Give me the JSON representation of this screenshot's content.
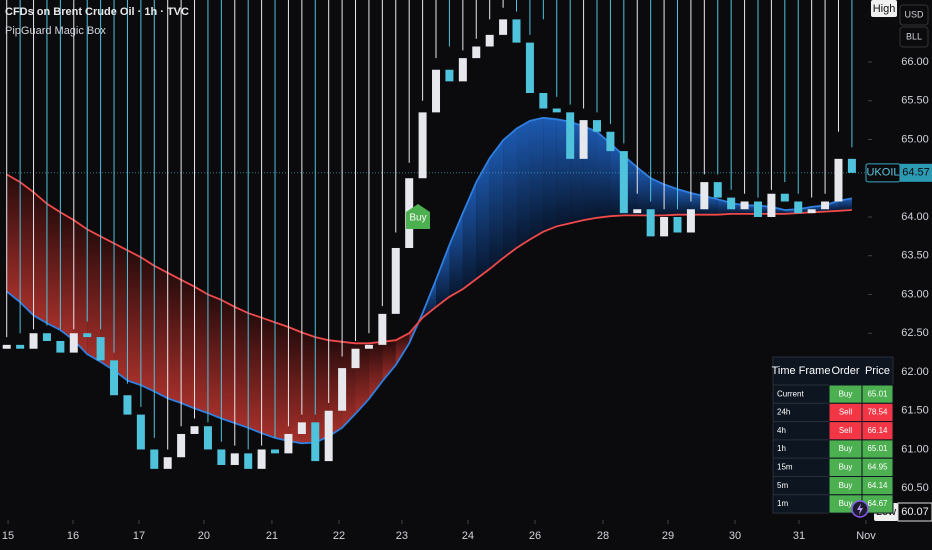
{
  "chart_data": {
    "type": "candlestick",
    "title": "CFDs on Brent Crude Oil · 1h · TVC",
    "subtitle": "PipGuard Magic Box",
    "open": [
      62.3,
      62.35,
      62.3,
      62.5,
      62.4,
      62.25,
      62.5,
      62.45,
      62.15,
      61.7,
      61.45,
      61.0,
      60.75,
      60.9,
      61.2,
      61.3,
      61.0,
      60.8,
      60.95,
      60.75,
      61.0,
      60.95,
      61.2,
      61.35,
      60.85,
      61.5,
      62.05,
      62.3,
      62.35,
      62.75,
      63.6,
      64.5,
      65.35,
      65.9,
      65.75,
      66.05,
      66.2,
      66.35,
      66.55,
      66.25,
      65.6,
      65.4,
      65.35,
      64.75,
      65.25,
      65.1,
      64.85,
      64.05,
      64.1,
      63.75,
      64.0,
      63.8,
      64.1,
      64.45,
      64.25,
      64.1,
      64.2,
      64.0,
      64.3,
      64.2,
      64.05,
      64.1,
      64.2,
      64.75
    ],
    "high": [
      62.45,
      62.5,
      62.55,
      62.6,
      62.55,
      62.55,
      62.65,
      62.55,
      62.25,
      61.85,
      61.55,
      61.15,
      61.0,
      61.3,
      61.4,
      61.35,
      61.1,
      61.05,
      61.0,
      61.05,
      61.15,
      61.3,
      61.45,
      61.45,
      61.6,
      62.2,
      62.4,
      62.5,
      62.85,
      63.8,
      64.7,
      65.5,
      66.05,
      66.2,
      66.15,
      66.3,
      66.55,
      66.7,
      66.65,
      66.35,
      66.55,
      65.55,
      65.45,
      65.4,
      65.35,
      65.2,
      64.95,
      64.3,
      64.2,
      64.1,
      64.1,
      64.2,
      64.55,
      64.55,
      64.35,
      64.3,
      64.25,
      64.35,
      64.45,
      64.3,
      64.25,
      64.3,
      65.1,
      64.9
    ],
    "low": 60.07,
    "close": [
      62.35,
      62.3,
      62.5,
      62.4,
      62.25,
      62.5,
      62.45,
      62.15,
      61.7,
      61.45,
      61.0,
      60.75,
      60.9,
      61.2,
      61.3,
      61.0,
      60.8,
      60.95,
      60.75,
      61.0,
      60.95,
      61.2,
      61.35,
      60.85,
      61.5,
      62.05,
      62.3,
      62.35,
      62.75,
      63.6,
      64.5,
      65.35,
      65.9,
      65.75,
      66.05,
      66.2,
      66.35,
      66.55,
      66.25,
      65.6,
      65.4,
      65.35,
      64.75,
      65.25,
      65.1,
      64.85,
      64.05,
      64.1,
      63.75,
      64.0,
      63.8,
      64.1,
      64.45,
      64.25,
      64.1,
      64.2,
      64.0,
      64.3,
      64.2,
      64.05,
      64.1,
      64.2,
      64.75,
      64.57
    ],
    "up_color": "#e6e8ee",
    "down_color": "#4fc3dc",
    "moving_averages": [
      {
        "color": "#2f7fe0",
        "values": [
          63.04,
          62.9,
          62.73,
          62.63,
          62.54,
          62.41,
          62.23,
          62.13,
          62.02,
          61.89,
          61.83,
          61.75,
          61.66,
          61.6,
          61.53,
          61.47,
          61.4,
          61.34,
          61.28,
          61.21,
          61.15,
          61.11,
          61.08,
          61.09,
          61.17,
          61.28,
          61.46,
          61.65,
          61.88,
          62.09,
          62.37,
          62.76,
          63.19,
          63.64,
          64.05,
          64.45,
          64.76,
          64.99,
          65.14,
          65.24,
          65.28,
          65.26,
          65.23,
          65.17,
          65.1,
          64.95,
          64.79,
          64.64,
          64.5,
          64.42,
          64.36,
          64.31,
          64.27,
          64.23,
          64.18,
          64.15,
          64.15,
          64.13,
          64.09,
          64.1,
          64.13,
          64.15,
          64.21,
          64.24
        ]
      },
      {
        "color": "#f04a4a",
        "values": [
          64.55,
          64.45,
          64.32,
          64.17,
          64.06,
          63.96,
          63.84,
          63.75,
          63.66,
          63.57,
          63.48,
          63.37,
          63.28,
          63.19,
          63.1,
          63.0,
          62.93,
          62.84,
          62.76,
          62.7,
          62.64,
          62.58,
          62.51,
          62.45,
          62.41,
          62.39,
          62.37,
          62.37,
          62.39,
          62.41,
          62.5,
          62.7,
          62.84,
          62.97,
          63.07,
          63.2,
          63.33,
          63.47,
          63.6,
          63.71,
          63.81,
          63.88,
          63.92,
          63.96,
          63.99,
          64.01,
          64.02,
          64.02,
          64.02,
          64.02,
          64.03,
          64.03,
          64.03,
          64.03,
          64.04,
          64.04,
          64.04,
          64.04,
          64.04,
          64.05,
          64.06,
          64.07,
          64.08,
          64.09
        ]
      }
    ],
    "band_colors": {
      "bull": [
        "#1f63c4",
        "#07162e"
      ],
      "bear": [
        "#2a0b0b",
        "#b8342e"
      ]
    },
    "ylim": [
      60.09,
      66.8
    ],
    "yticks": [
      {
        "value": 60.5,
        "label": "60.50"
      },
      {
        "value": 61,
        "label": "61.00"
      },
      {
        "value": 61.5,
        "label": "61.50"
      },
      {
        "value": 62,
        "label": "62.00"
      },
      {
        "value": 62.5,
        "label": "62.50"
      },
      {
        "value": 63,
        "label": "63.00"
      },
      {
        "value": 63.5,
        "label": "63.50"
      },
      {
        "value": 64,
        "label": "64.00"
      },
      {
        "value": 65,
        "label": "65.00"
      },
      {
        "value": 65.5,
        "label": "65.50"
      },
      {
        "value": 66,
        "label": "66.00"
      }
    ],
    "xlim": [
      -0.5,
      64.2
    ],
    "xticks": [
      {
        "value": 0.1,
        "label": "15"
      },
      {
        "value": 4.94,
        "label": "16"
      },
      {
        "value": 9.86,
        "label": "17"
      },
      {
        "value": 14.7,
        "label": "20"
      },
      {
        "value": 19.77,
        "label": "21"
      },
      {
        "value": 24.77,
        "label": "22"
      },
      {
        "value": 29.46,
        "label": "23"
      },
      {
        "value": 34.38,
        "label": "24"
      },
      {
        "value": 39.38,
        "label": "26"
      },
      {
        "value": 44.45,
        "label": "28"
      },
      {
        "value": 49.29,
        "label": "29"
      },
      {
        "value": 54.29,
        "label": "30"
      },
      {
        "value": 59.06,
        "label": "31"
      },
      {
        "value": 64.05,
        "label": "Nov"
      }
    ],
    "symbol": "UKOIL",
    "last_price": 64.57,
    "high_label": "High",
    "low_label": "Low",
    "annotations": [
      "Buy"
    ],
    "currency": "USD",
    "unit": "BLL"
  },
  "table": {
    "columns": [
      "Time Frame",
      "Order",
      "Price"
    ],
    "rows": [
      [
        "Current",
        "Buy",
        65.01
      ],
      [
        "24h",
        "Sell",
        78.54
      ],
      [
        "4h",
        "Sell",
        66.14
      ],
      [
        "1h",
        "Buy",
        65.01
      ],
      [
        "15m",
        "Buy",
        64.95
      ],
      [
        "5m",
        "Buy",
        64.14
      ],
      [
        "1m",
        "Buy",
        64.67
      ]
    ]
  }
}
